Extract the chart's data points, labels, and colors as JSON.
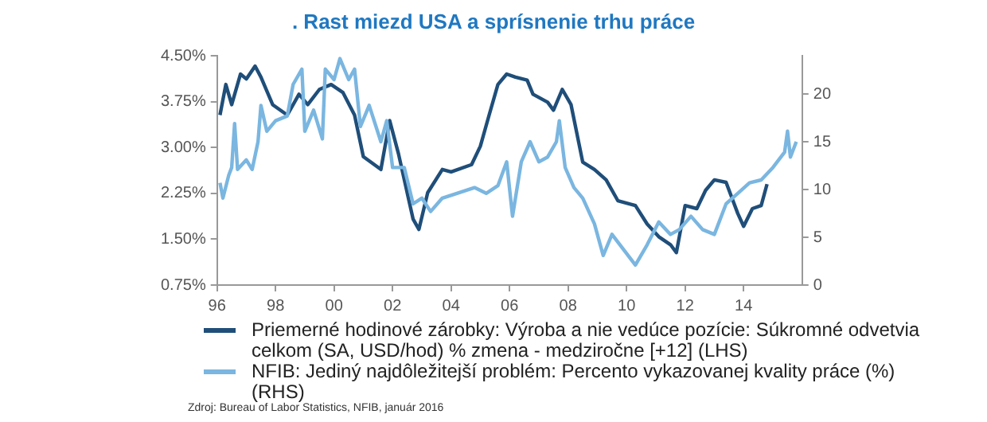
{
  "chart_data": {
    "type": "line",
    "title": ". Rast miezd USA a sprísnenie trhu práce",
    "xlim": [
      1996,
      2016
    ],
    "xticks": [
      {
        "value": 1996,
        "label": "96"
      },
      {
        "value": 1998,
        "label": "98"
      },
      {
        "value": 2000,
        "label": "00"
      },
      {
        "value": 2002,
        "label": "02"
      },
      {
        "value": 2004,
        "label": "04"
      },
      {
        "value": 2006,
        "label": "06"
      },
      {
        "value": 2008,
        "label": "08"
      },
      {
        "value": 2010,
        "label": "10"
      },
      {
        "value": 2012,
        "label": "12"
      },
      {
        "value": 2014,
        "label": "14"
      }
    ],
    "ylim": [
      0.75,
      4.5
    ],
    "yticks": [
      {
        "value": 0.75,
        "label": "0.75%"
      },
      {
        "value": 1.5,
        "label": "1.50%"
      },
      {
        "value": 2.25,
        "label": "2.25%"
      },
      {
        "value": 3,
        "label": "3.00%"
      },
      {
        "value": 3.75,
        "label": "3.75%"
      },
      {
        "value": 4.5,
        "label": "4.50%"
      }
    ],
    "y2lim": [
      0,
      24
    ],
    "y2ticks": [
      0,
      5,
      10,
      15,
      20
    ],
    "grid": false,
    "legend": "bottom",
    "series": [
      {
        "name": "Priemerné hodinové zárobky: Výroba a nie vedúce pozície: Súkromné odvetvia celkom (SA, USD/hod) % zmena - medziročne [+12] (LHS)",
        "color": "#1f4e79",
        "x": [
          1996.1,
          1996.3,
          1996.5,
          1996.8,
          1997.0,
          1997.3,
          1997.5,
          1997.9,
          1998.4,
          1998.8,
          1999.1,
          1999.5,
          1999.9,
          2000.3,
          2000.7,
          2001.0,
          2001.6,
          2001.9,
          2002.2,
          2002.7,
          2002.9,
          2003.2,
          2003.7,
          2004.0,
          2004.7,
          2005.0,
          2005.3,
          2005.6,
          2005.9,
          2006.2,
          2006.6,
          2006.8,
          2007.3,
          2007.5,
          2007.8,
          2008.1,
          2008.5,
          2008.9,
          2009.3,
          2009.7,
          2010.3,
          2010.7,
          2011.1,
          2011.5,
          2011.7,
          2012.0,
          2012.4,
          2012.7,
          2013.0,
          2013.4,
          2013.8,
          2014.0,
          2014.3,
          2014.6,
          2014.8
        ],
        "values": [
          3.53,
          4.03,
          3.7,
          4.2,
          4.12,
          4.33,
          4.15,
          3.7,
          3.53,
          3.87,
          3.7,
          3.95,
          4.03,
          3.9,
          3.53,
          2.85,
          2.64,
          3.44,
          2.9,
          1.83,
          1.66,
          2.26,
          2.64,
          2.6,
          2.72,
          3.02,
          3.53,
          4.03,
          4.2,
          4.15,
          4.1,
          3.87,
          3.74,
          3.61,
          3.95,
          3.7,
          2.76,
          2.64,
          2.47,
          2.13,
          2.05,
          1.75,
          1.54,
          1.41,
          1.28,
          2.05,
          2.0,
          2.3,
          2.47,
          2.43,
          1.92,
          1.71,
          2.0,
          2.05,
          2.4
        ]
      },
      {
        "name": "NFIB: Jediný najdôležitejší problém: Percento vykazovanej kvality práce (%) (RHS)",
        "color": "#7ab6e0",
        "axis": "y2",
        "x": [
          1996.1,
          1996.2,
          1996.4,
          1996.5,
          1996.6,
          1996.7,
          1997.0,
          1997.2,
          1997.4,
          1997.5,
          1997.7,
          1998.0,
          1998.4,
          1998.6,
          1998.9,
          1999.0,
          1999.3,
          1999.6,
          1999.7,
          2000.0,
          2000.2,
          2000.5,
          2000.7,
          2000.9,
          2001.2,
          2001.6,
          2001.8,
          2002.0,
          2002.4,
          2002.7,
          2003.0,
          2003.3,
          2003.7,
          2004.2,
          2004.8,
          2005.2,
          2005.6,
          2005.9,
          2006.1,
          2006.4,
          2006.7,
          2007.0,
          2007.3,
          2007.6,
          2007.7,
          2007.9,
          2008.2,
          2008.5,
          2008.9,
          2009.2,
          2009.5,
          2009.9,
          2010.3,
          2010.7,
          2011.1,
          2011.5,
          2011.8,
          2012.2,
          2012.6,
          2013.0,
          2013.4,
          2013.8,
          2014.2,
          2014.6,
          2015.0,
          2015.4,
          2015.5,
          2015.6,
          2015.8
        ],
        "values": [
          10.7,
          9.1,
          11.5,
          12.3,
          16.9,
          12.1,
          13.1,
          12.1,
          15.0,
          18.8,
          16.1,
          17.2,
          17.7,
          21.0,
          22.6,
          16.1,
          18.3,
          15.3,
          22.6,
          21.5,
          23.7,
          21.5,
          22.6,
          16.6,
          18.8,
          15.0,
          17.2,
          12.3,
          12.3,
          8.5,
          9.1,
          7.7,
          9.1,
          9.6,
          10.2,
          9.6,
          10.4,
          12.9,
          7.2,
          12.9,
          15.0,
          12.9,
          13.4,
          15.0,
          17.2,
          12.3,
          10.2,
          9.1,
          6.4,
          3.1,
          5.3,
          3.7,
          2.1,
          4.2,
          6.6,
          5.3,
          5.8,
          7.2,
          5.8,
          5.3,
          8.5,
          9.6,
          10.7,
          11.0,
          12.3,
          13.9,
          16.1,
          13.4,
          15.0
        ]
      }
    ],
    "annotations": [
      "Zdroj: Bureau of Labor Statistics, NFIB, január 2016"
    ]
  }
}
